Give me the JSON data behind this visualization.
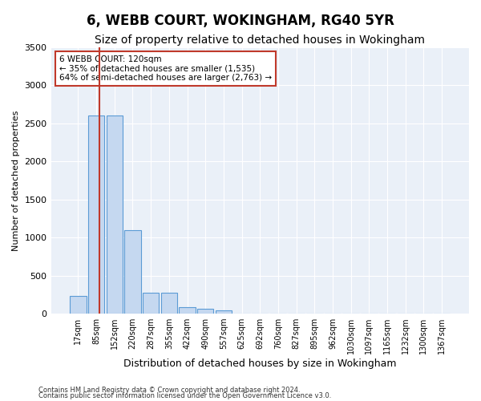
{
  "title": "6, WEBB COURT, WOKINGHAM, RG40 5YR",
  "subtitle": "Size of property relative to detached houses in Wokingham",
  "xlabel": "Distribution of detached houses by size in Wokingham",
  "ylabel": "Number of detached properties",
  "footnote1": "Contains HM Land Registry data © Crown copyright and database right 2024.",
  "footnote2": "Contains public sector information licensed under the Open Government Licence v3.0.",
  "categories": [
    "17sqm",
    "85sqm",
    "152sqm",
    "220sqm",
    "287sqm",
    "355sqm",
    "422sqm",
    "490sqm",
    "557sqm",
    "625sqm",
    "692sqm",
    "760sqm",
    "827sqm",
    "895sqm",
    "962sqm",
    "1030sqm",
    "1097sqm",
    "1165sqm",
    "1232sqm",
    "1300sqm",
    "1367sqm"
  ],
  "values": [
    230,
    2600,
    2600,
    1100,
    280,
    280,
    90,
    60,
    38,
    5,
    2,
    1,
    1,
    1,
    1,
    1,
    1,
    1,
    1,
    1,
    1
  ],
  "bar_color": "#c5d8f0",
  "bar_edge_color": "#5b9bd5",
  "red_line_x": 1.15,
  "red_line_color": "#c0392b",
  "annotation_text": "6 WEBB COURT: 120sqm\n← 35% of detached houses are smaller (1,535)\n64% of semi-detached houses are larger (2,763) →",
  "annotation_box_color": "white",
  "annotation_edge_color": "#c0392b",
  "ylim": [
    0,
    3500
  ],
  "yticks": [
    0,
    500,
    1000,
    1500,
    2000,
    2500,
    3000,
    3500
  ],
  "plot_bg_color": "#eaf0f8",
  "title_fontsize": 12,
  "subtitle_fontsize": 10,
  "xlabel_fontsize": 9,
  "ylabel_fontsize": 8,
  "annotation_fontsize": 7.5
}
